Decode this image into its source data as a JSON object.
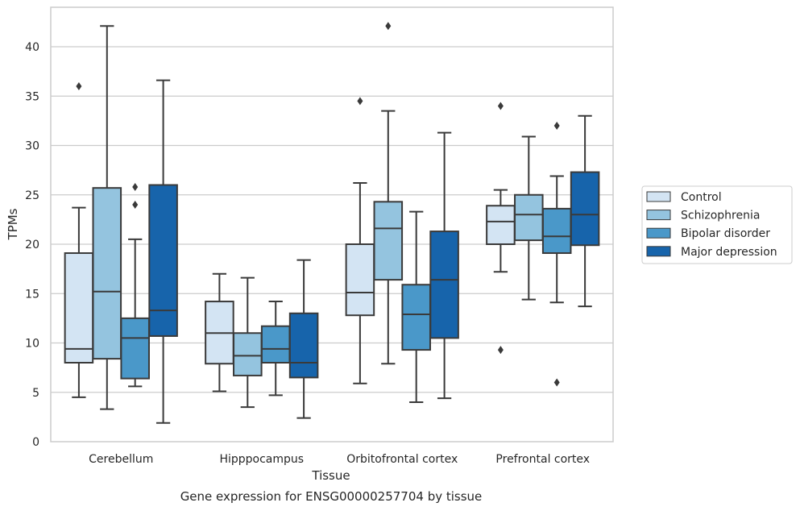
{
  "chart_data": {
    "type": "box",
    "caption": "Gene expression for ENSG00000257704 by tissue",
    "xlabel": "Tissue",
    "ylabel": "TPMs",
    "ylim": [
      0,
      44
    ],
    "yticks": [
      0,
      5,
      10,
      15,
      20,
      25,
      30,
      35,
      40
    ],
    "grid": "horizontal",
    "legend_position": "right",
    "categories": [
      "Cerebellum",
      "Hipppocampus",
      "Orbitofrontal cortex",
      "Prefrontal cortex"
    ],
    "series": [
      {
        "name": "Control",
        "color": "#d3e4f3",
        "boxes": [
          {
            "whislo": 4.5,
            "q1": 8.0,
            "med": 9.4,
            "q3": 19.1,
            "whishi": 23.7,
            "fliers": [
              36.0
            ]
          },
          {
            "whislo": 5.1,
            "q1": 7.9,
            "med": 11.0,
            "q3": 14.2,
            "whishi": 17.0,
            "fliers": []
          },
          {
            "whislo": 5.9,
            "q1": 12.8,
            "med": 15.1,
            "q3": 20.0,
            "whishi": 26.2,
            "fliers": [
              34.5
            ]
          },
          {
            "whislo": 17.2,
            "q1": 20.0,
            "med": 22.3,
            "q3": 23.9,
            "whishi": 25.5,
            "fliers": [
              34.0,
              9.3
            ]
          }
        ]
      },
      {
        "name": "Schizophrenia",
        "color": "#94c4df",
        "boxes": [
          {
            "whislo": 3.3,
            "q1": 8.4,
            "med": 15.2,
            "q3": 25.7,
            "whishi": 42.1,
            "fliers": []
          },
          {
            "whislo": 3.5,
            "q1": 6.7,
            "med": 8.7,
            "q3": 11.0,
            "whishi": 16.6,
            "fliers": []
          },
          {
            "whislo": 7.9,
            "q1": 16.4,
            "med": 21.6,
            "q3": 24.3,
            "whishi": 33.5,
            "fliers": [
              42.1
            ]
          },
          {
            "whislo": 14.4,
            "q1": 20.4,
            "med": 23.0,
            "q3": 25.0,
            "whishi": 30.9,
            "fliers": []
          }
        ]
      },
      {
        "name": "Bipolar disorder",
        "color": "#4a98c9",
        "boxes": [
          {
            "whislo": 5.6,
            "q1": 6.4,
            "med": 10.5,
            "q3": 12.5,
            "whishi": 20.5,
            "fliers": [
              25.8,
              24.0
            ]
          },
          {
            "whislo": 4.7,
            "q1": 8.0,
            "med": 9.4,
            "q3": 11.7,
            "whishi": 14.2,
            "fliers": []
          },
          {
            "whislo": 4.0,
            "q1": 9.3,
            "med": 12.9,
            "q3": 15.9,
            "whishi": 23.3,
            "fliers": []
          },
          {
            "whislo": 14.1,
            "q1": 19.1,
            "med": 20.8,
            "q3": 23.6,
            "whishi": 26.9,
            "fliers": [
              32.0,
              6.0
            ]
          }
        ]
      },
      {
        "name": "Major depression",
        "color": "#1764ab",
        "boxes": [
          {
            "whislo": 1.9,
            "q1": 10.7,
            "med": 13.3,
            "q3": 26.0,
            "whishi": 36.6,
            "fliers": []
          },
          {
            "whislo": 2.4,
            "q1": 6.5,
            "med": 8.0,
            "q3": 13.0,
            "whishi": 18.4,
            "fliers": []
          },
          {
            "whislo": 4.4,
            "q1": 10.5,
            "med": 16.4,
            "q3": 21.3,
            "whishi": 31.3,
            "fliers": []
          },
          {
            "whislo": 13.7,
            "q1": 19.9,
            "med": 23.0,
            "q3": 27.3,
            "whishi": 33.0,
            "fliers": []
          }
        ]
      }
    ]
  }
}
